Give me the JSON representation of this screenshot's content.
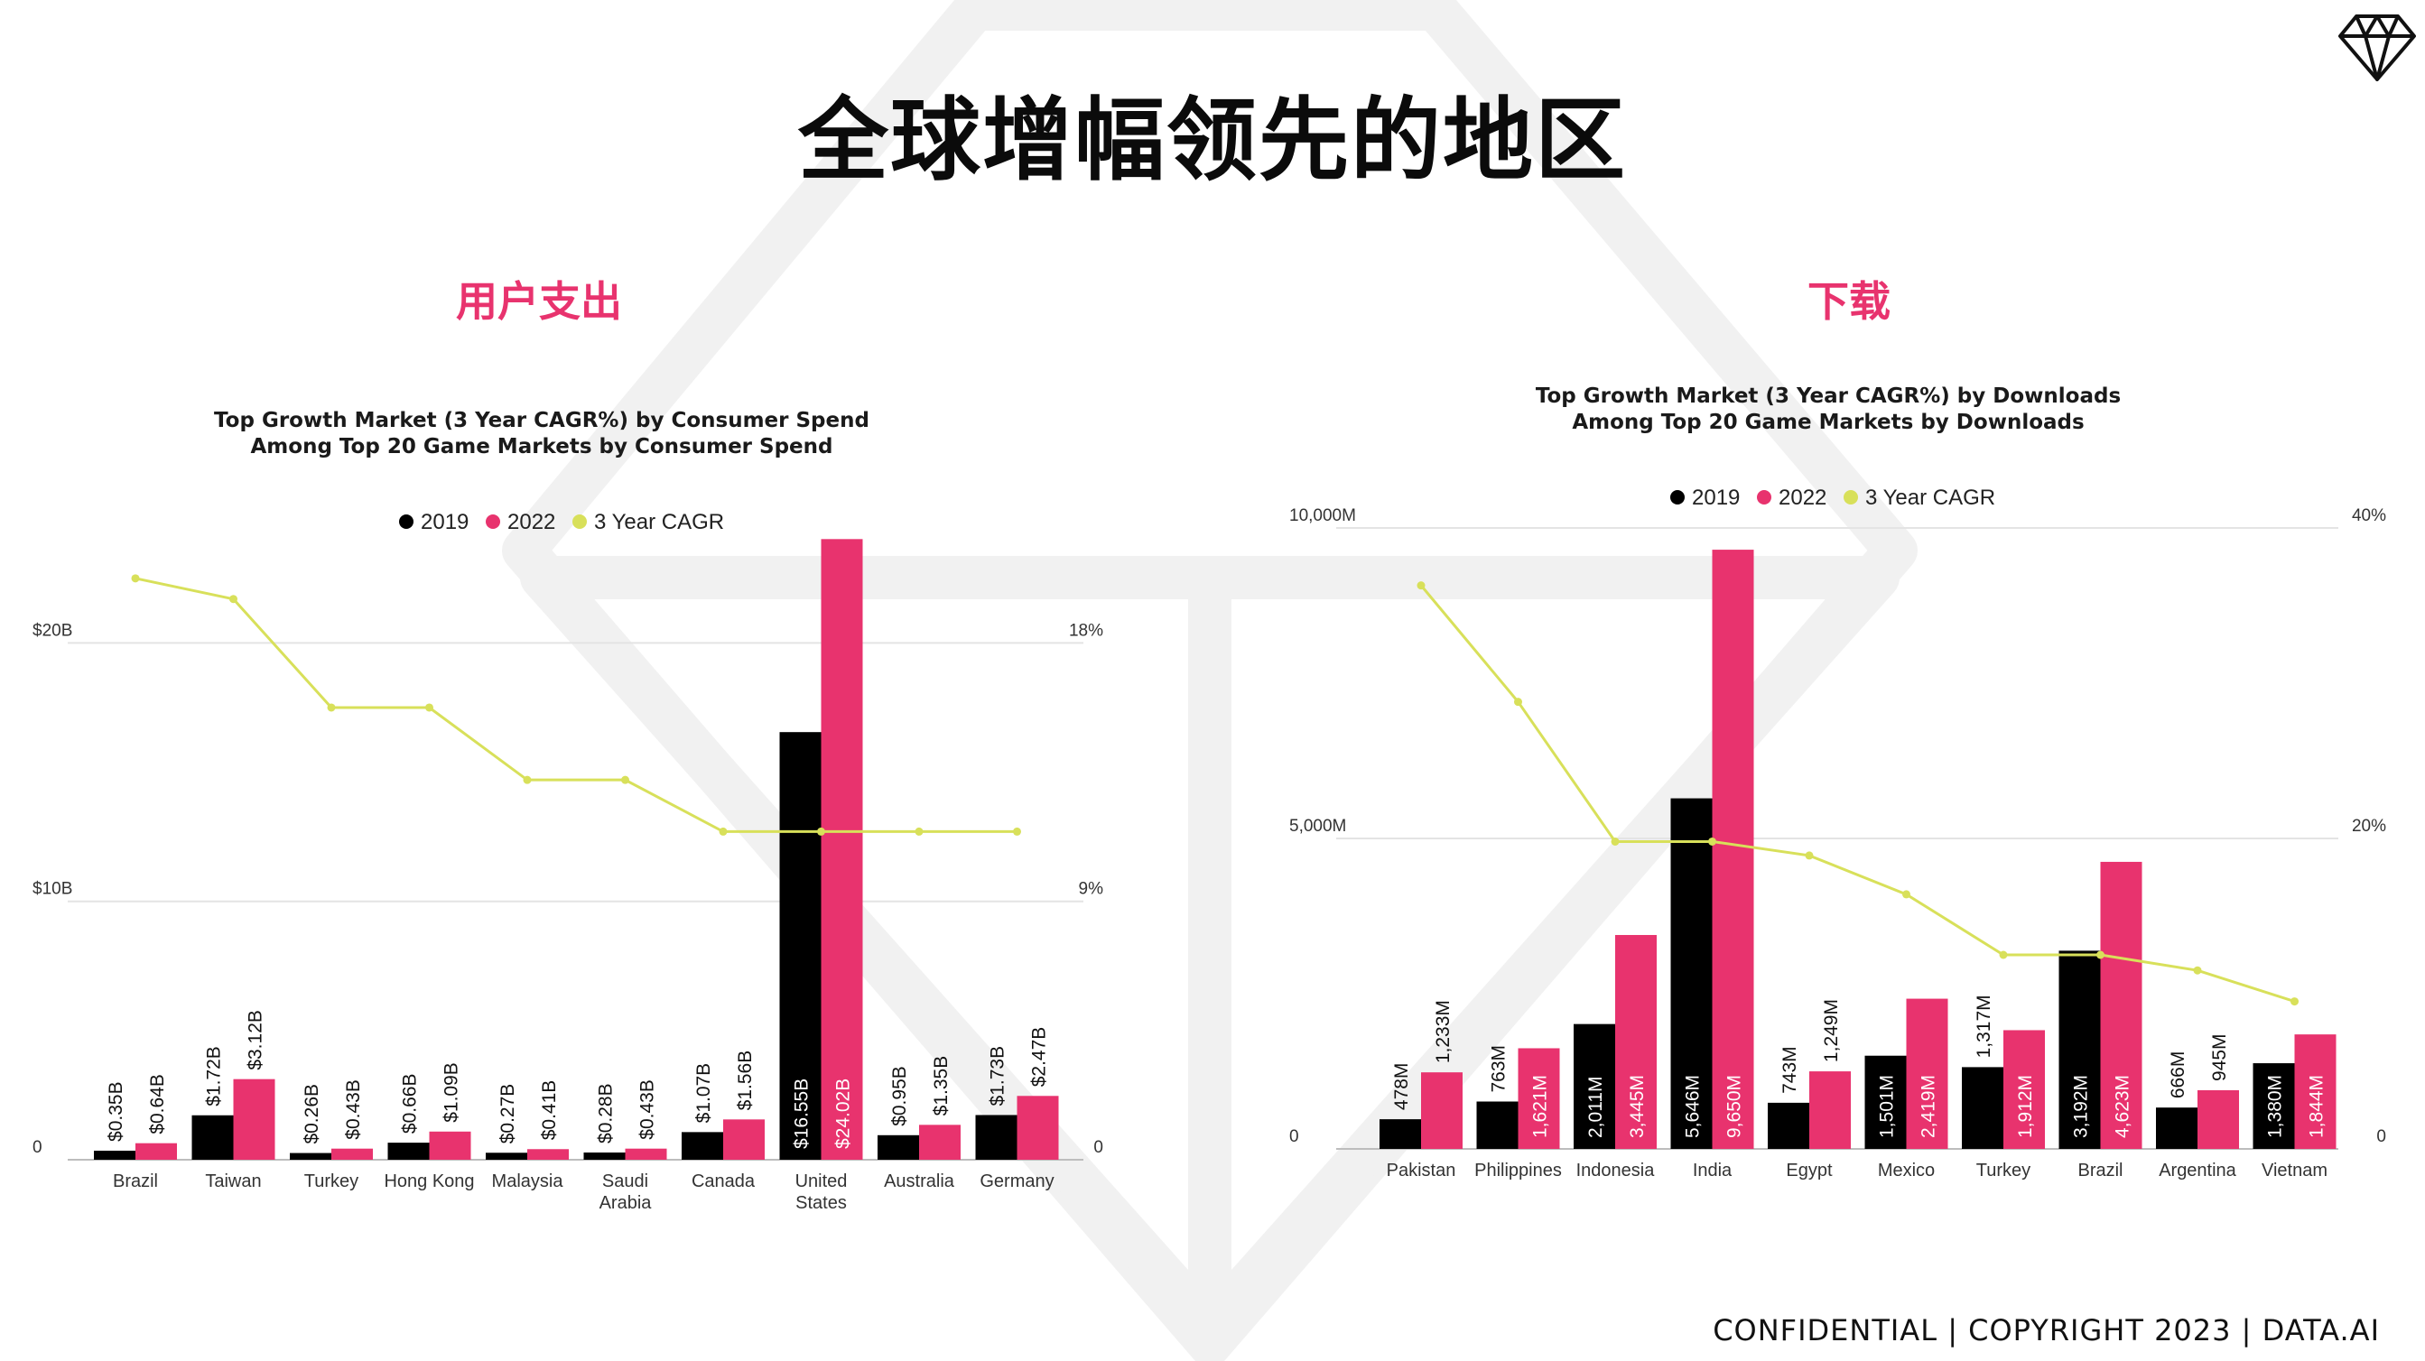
{
  "title": "全球增幅领先的地区",
  "footer": "CONFIDENTIAL  |  COPYRIGHT 2023  |  DATA.AI",
  "colors": {
    "y2019": "#000000",
    "y2022": "#e8336e",
    "cagr": "#d8e05a",
    "accent": "#e8336e"
  },
  "sections": {
    "spend": {
      "heading": "用户支出",
      "title_line1": "Top  Growth Market (3 Year CAGR%)  by Consumer Spend",
      "title_line2": "Among Top 20 Game Markets by Consumer Spend"
    },
    "downloads": {
      "heading": "下载",
      "title_line1": "Top  Growth Market (3 Year CAGR%)  by Downloads",
      "title_line2": "Among Top 20 Game Markets by Downloads"
    }
  },
  "chart_data": [
    {
      "type": "bar",
      "title": "Top  Growth Market (3 Year CAGR%)  by Consumer Spend / Among Top 20 Game Markets by Consumer Spend",
      "categories": [
        "Brazil",
        "Taiwan",
        "Turkey",
        "Hong Kong",
        "Malaysia",
        "Saudi Arabia",
        "Canada",
        "United States",
        "Australia",
        "Germany"
      ],
      "series": [
        {
          "name": "2019",
          "values": [
            0.35,
            1.72,
            0.26,
            0.66,
            0.27,
            0.28,
            1.07,
            16.55,
            0.95,
            1.73
          ],
          "labels": [
            "$0.35B",
            "$1.72B",
            "$0.26B",
            "$0.66B",
            "$0.27B",
            "$0.28B",
            "$1.07B",
            "$16.55B",
            "$0.95B",
            "$1.73B"
          ]
        },
        {
          "name": "2022",
          "values": [
            0.64,
            3.12,
            0.43,
            1.09,
            0.41,
            0.43,
            1.56,
            24.02,
            1.35,
            2.47
          ],
          "labels": [
            "$0.64B",
            "$3.12B",
            "$0.43B",
            "$1.09B",
            "$0.41B",
            "$0.43B",
            "$1.56B",
            "$24.02B",
            "$1.35B",
            "$2.47B"
          ]
        },
        {
          "name": "3 Year CAGR",
          "type": "line",
          "axis": "right",
          "values": [
            22.5,
            21.7,
            17.5,
            17.5,
            14.7,
            14.7,
            12.7,
            12.7,
            12.7,
            12.7
          ]
        }
      ],
      "yticks_left": [
        "0",
        "$10B",
        "$20B"
      ],
      "ylim_left": [
        0,
        27
      ],
      "yticks_right": [
        "0",
        "9%",
        "18%"
      ],
      "ylim_right": [
        0,
        27
      ],
      "legend": [
        "2019",
        "2022",
        "3 Year CAGR"
      ],
      "legend_position": "top-center",
      "grid": true
    },
    {
      "type": "bar",
      "title": "Top  Growth Market (3 Year CAGR%)  by Downloads / Among Top 20 Game Markets by Downloads",
      "categories": [
        "Pakistan",
        "Philippines",
        "Indonesia",
        "India",
        "Egypt",
        "Mexico",
        "Turkey",
        "Brazil",
        "Argentina",
        "Vietnam"
      ],
      "series": [
        {
          "name": "2019",
          "values": [
            478,
            763,
            2011,
            5646,
            743,
            1501,
            1317,
            3192,
            666,
            1380
          ],
          "labels": [
            "478M",
            "763M",
            "2,011M",
            "5,646M",
            "743M",
            "1,501M",
            "1,317M",
            "3,192M",
            "666M",
            "1,380M"
          ]
        },
        {
          "name": "2022",
          "values": [
            1233,
            1621,
            3445,
            9650,
            1249,
            2419,
            1912,
            4623,
            945,
            1844
          ],
          "labels": [
            "1,233M",
            "1,621M",
            "3,445M",
            "9,650M",
            "1,249M",
            "2,419M",
            "1,912M",
            "4,623M",
            "945M",
            "1,844M"
          ]
        },
        {
          "name": "3 Year CAGR",
          "type": "line",
          "axis": "right",
          "values": [
            36.3,
            28.8,
            19.8,
            19.8,
            18.9,
            16.4,
            12.5,
            12.5,
            11.5,
            9.5
          ]
        }
      ],
      "yticks_left": [
        "0",
        "5,000M",
        "10,000M"
      ],
      "ylim_left": [
        0,
        10000
      ],
      "yticks_right": [
        "0",
        "20%",
        "40%"
      ],
      "ylim_right": [
        0,
        40
      ],
      "legend": [
        "2019",
        "2022",
        "3 Year CAGR"
      ],
      "legend_position": "top-center",
      "grid": true
    }
  ]
}
